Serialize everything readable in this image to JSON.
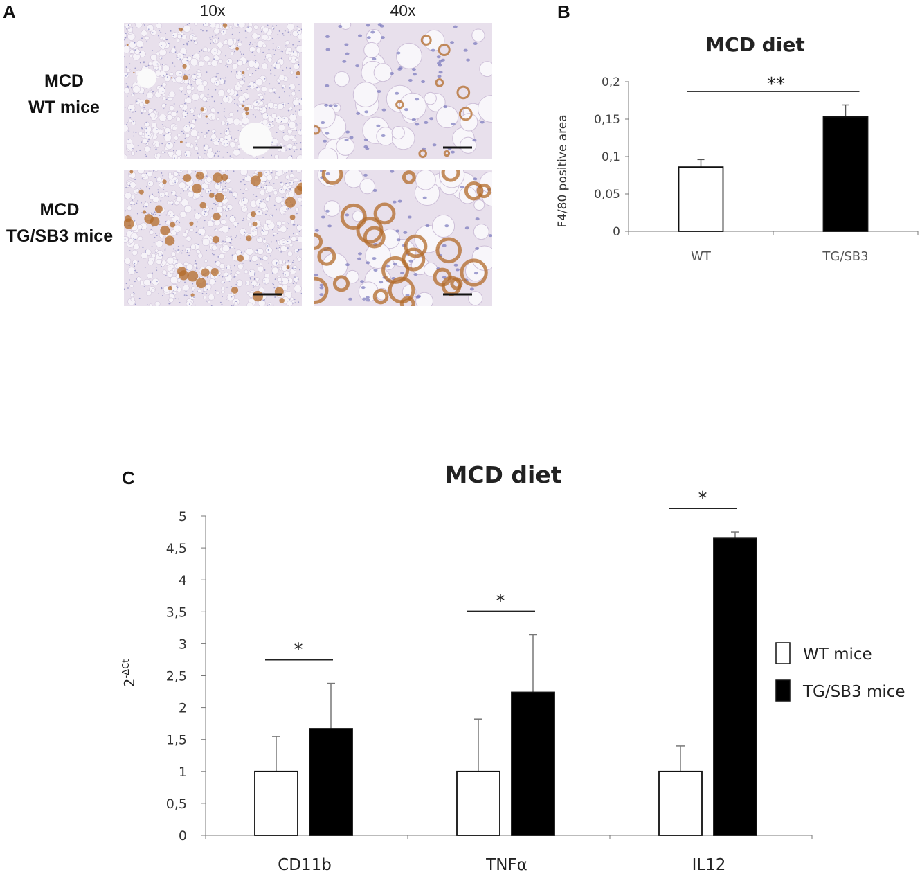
{
  "panel_a": {
    "letter": "A",
    "columns": [
      "10x",
      "40x"
    ],
    "rows": [
      {
        "line1": "MCD",
        "line2": "WT mice"
      },
      {
        "line1": "MCD",
        "line2": "TG/SB3 mice"
      }
    ]
  },
  "panel_b": {
    "letter": "B"
  },
  "panel_c": {
    "letter": "C"
  },
  "colors": {
    "wt_fill": "#ffffff",
    "tg_fill": "#000000",
    "stain_brown": "#b36b2a",
    "nuclei_blue": "#6f6fb8",
    "tissue_bg": "#e8e0ec"
  },
  "chart_data": [
    {
      "type": "bar",
      "title": "MCD diet",
      "ylabel": "F4/80 positive area",
      "xlabel": "",
      "categories": [
        "WT",
        "TG/SB3"
      ],
      "series": [
        {
          "name": "",
          "values": [
            0.086,
            0.153
          ],
          "errors": [
            0.01,
            0.016
          ]
        }
      ],
      "ylim": [
        0,
        0.2
      ],
      "yticks": [
        "0",
        "0,05",
        "0,1",
        "0,15",
        "0,2"
      ],
      "significance": [
        {
          "between": [
            "WT",
            "TG/SB3"
          ],
          "label": "**"
        }
      ]
    },
    {
      "type": "bar",
      "title": "MCD diet",
      "ylabel": "2-ΔCt",
      "ylabel_base": "2",
      "ylabel_sup": "-ΔCt",
      "xlabel": "",
      "categories": [
        "CD11b",
        "TNFα",
        "IL12"
      ],
      "series": [
        {
          "name": "WT mice",
          "values": [
            1.0,
            1.0,
            1.0
          ],
          "errors": [
            0.55,
            0.82,
            0.4
          ]
        },
        {
          "name": "TG/SB3 mice",
          "values": [
            1.67,
            2.24,
            4.65
          ],
          "errors": [
            0.71,
            0.9,
            0.1
          ]
        }
      ],
      "ylim": [
        0,
        5
      ],
      "yticks": [
        "0",
        "0,5",
        "1",
        "1,5",
        "2",
        "2,5",
        "3",
        "3,5",
        "4",
        "4,5",
        "5"
      ],
      "significance": [
        {
          "category": "CD11b",
          "label": "*"
        },
        {
          "category": "TNFα",
          "label": "*"
        },
        {
          "category": "IL12",
          "label": "*"
        }
      ],
      "legend": "right"
    }
  ]
}
